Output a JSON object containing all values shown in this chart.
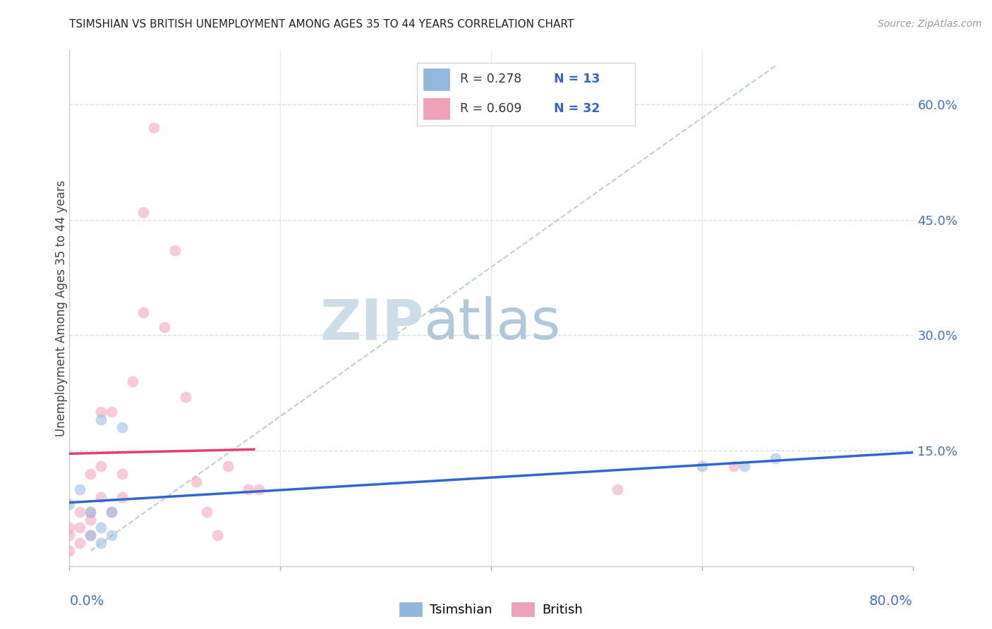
{
  "title": "TSIMSHIAN VS BRITISH UNEMPLOYMENT AMONG AGES 35 TO 44 YEARS CORRELATION CHART",
  "source": "Source: ZipAtlas.com",
  "ylabel": "Unemployment Among Ages 35 to 44 years",
  "ylabel_right_ticks": [
    "60.0%",
    "45.0%",
    "30.0%",
    "15.0%"
  ],
  "ylabel_right_vals": [
    0.6,
    0.45,
    0.3,
    0.15
  ],
  "xmin": 0.0,
  "xmax": 0.8,
  "ymin": 0.0,
  "ymax": 0.67,
  "tsimshian_color": "#92b8dd",
  "british_color": "#f0a0b8",
  "tsimshian_edge_color": "#92b8dd",
  "british_edge_color": "#f0a0b8",
  "tsimshian_line_color": "#3366cc",
  "british_line_color": "#e0406a",
  "ref_line_color": "#b8c8d8",
  "legend_R_tsimshian": "R = 0.278",
  "legend_N_tsimshian": "N = 13",
  "legend_R_british": "R = 0.609",
  "legend_N_british": "N = 32",
  "tsimshian_x": [
    0.0,
    0.01,
    0.02,
    0.02,
    0.03,
    0.03,
    0.03,
    0.04,
    0.04,
    0.05,
    0.6,
    0.64,
    0.67
  ],
  "tsimshian_y": [
    0.08,
    0.1,
    0.04,
    0.07,
    0.03,
    0.05,
    0.19,
    0.04,
    0.07,
    0.18,
    0.13,
    0.13,
    0.14
  ],
  "british_x": [
    0.0,
    0.0,
    0.0,
    0.01,
    0.01,
    0.01,
    0.02,
    0.02,
    0.02,
    0.02,
    0.03,
    0.03,
    0.03,
    0.04,
    0.04,
    0.05,
    0.05,
    0.06,
    0.07,
    0.07,
    0.08,
    0.09,
    0.1,
    0.11,
    0.12,
    0.13,
    0.14,
    0.15,
    0.17,
    0.18,
    0.52,
    0.63
  ],
  "british_y": [
    0.02,
    0.04,
    0.05,
    0.03,
    0.05,
    0.07,
    0.04,
    0.06,
    0.07,
    0.12,
    0.09,
    0.13,
    0.2,
    0.07,
    0.2,
    0.09,
    0.12,
    0.24,
    0.33,
    0.46,
    0.57,
    0.31,
    0.41,
    0.22,
    0.11,
    0.07,
    0.04,
    0.13,
    0.1,
    0.1,
    0.1,
    0.13
  ],
  "background_color": "#ffffff",
  "plot_bg_color": "#ffffff",
  "grid_color": "#d4dde8",
  "watermark_zip_color": "#ccdde8",
  "watermark_atlas_color": "#b8ccd8",
  "marker_size": 130,
  "marker_alpha": 0.55
}
